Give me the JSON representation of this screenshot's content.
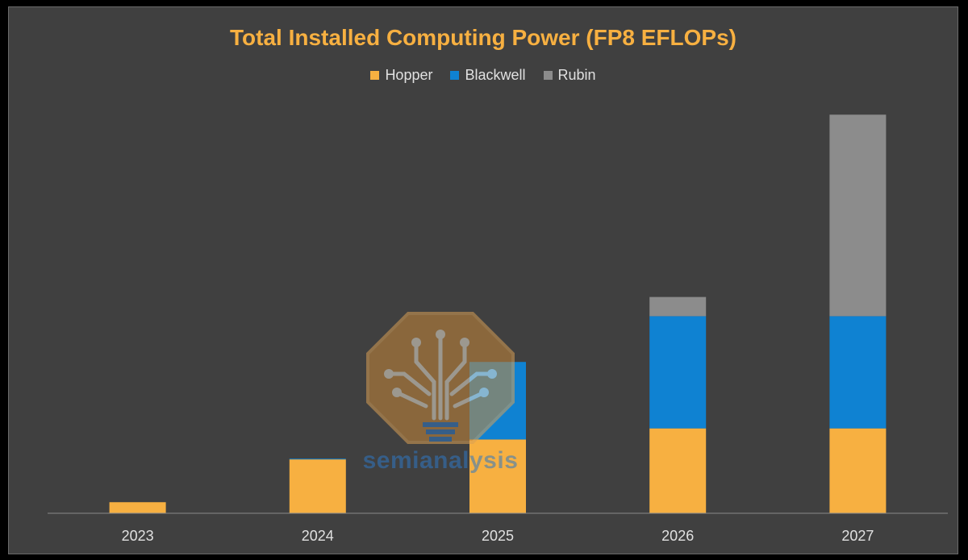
{
  "chart_data": {
    "type": "bar",
    "stacked": true,
    "title": "Total Installed Computing Power (FP8 EFLOPs)",
    "xlabel": "",
    "ylabel": "",
    "categories": [
      "2023",
      "2024",
      "2025",
      "2026",
      "2027"
    ],
    "series": [
      {
        "name": "Hopper",
        "color": "#F7B041",
        "values": [
          1.5,
          7.3,
          10,
          11.5,
          11.5
        ]
      },
      {
        "name": "Blackwell",
        "color": "#0F82D2",
        "values": [
          0,
          0.1,
          10.5,
          15.2,
          15.2
        ]
      },
      {
        "name": "Rubin",
        "color": "#8C8C8C",
        "values": [
          0,
          0,
          0,
          2.6,
          27.3
        ]
      }
    ],
    "ylim": [
      0,
      56
    ],
    "legend_position": "top",
    "grid": false,
    "y_axis_visible": false
  },
  "watermark": {
    "text": "semianalysis",
    "icon": "tree-circuit-icon"
  },
  "colors": {
    "title": "#F7B041",
    "background": "#404040",
    "axis": "#8a8a8a",
    "tick_label": "#e0e0e0"
  }
}
